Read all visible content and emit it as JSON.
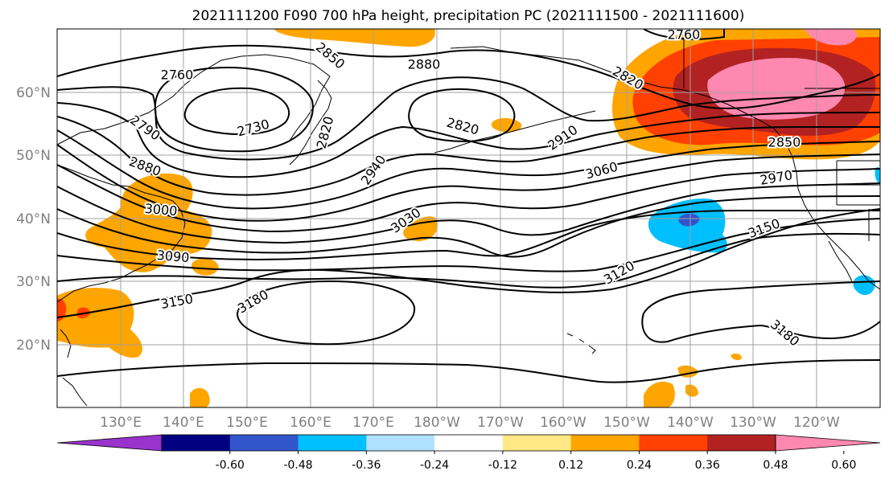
{
  "title": "2021111200 F090 700 hPa height, precipitation PC (2021111500 - 2021111600)",
  "lat_labels": [
    "60°N",
    "50°N",
    "40°N",
    "30°N",
    "20°N"
  ],
  "lon_labels": [
    "130°E",
    "140°E",
    "150°E",
    "160°E",
    "170°E",
    "180°W",
    "170°W",
    "160°W",
    "150°W",
    "140°W",
    "130°W",
    "120°W"
  ],
  "contour_labels": [
    "2760",
    "2850",
    "2880",
    "2760",
    "2820",
    "2730",
    "2820",
    "2820",
    "2910",
    "2790",
    "2880",
    "2940",
    "3060",
    "2850",
    "2970",
    "3000",
    "3030",
    "3150",
    "3090",
    "3120",
    "3150",
    "3180",
    "3180"
  ],
  "colorbar": {
    "colors": [
      "#9933cc",
      "#000080",
      "#3355cc",
      "#00bfff",
      "#b0e0ff",
      "#ffffff",
      "#ffe885",
      "#ffa500",
      "#ff4000",
      "#b22222",
      "#ff88b0"
    ],
    "tick_labels": [
      "-0.60",
      "-0.48",
      "-0.36",
      "-0.24",
      "-0.12",
      "0.12",
      "0.24",
      "0.36",
      "0.48",
      "0.60"
    ]
  }
}
